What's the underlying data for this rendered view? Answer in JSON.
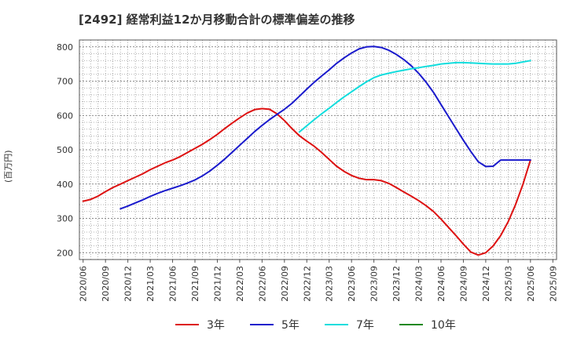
{
  "chart_data": {
    "type": "line",
    "title": "[2492]  経常利益12か月移動合計の標準偏差の推移",
    "ylabel": "(百万円)",
    "xlabel": "",
    "ylim": [
      180,
      820
    ],
    "yticks": [
      200,
      300,
      400,
      500,
      600,
      700,
      800
    ],
    "x_ticks": [
      "2020/06",
      "2020/09",
      "2020/12",
      "2021/03",
      "2021/06",
      "2021/09",
      "2021/12",
      "2022/03",
      "2022/06",
      "2022/09",
      "2022/12",
      "2023/03",
      "2023/06",
      "2023/09",
      "2023/12",
      "2024/03",
      "2024/06",
      "2024/09",
      "2024/12",
      "2025/03",
      "2025/06",
      "2025/09"
    ],
    "grid": true,
    "legend_position": "bottom",
    "series": [
      {
        "name": "3年",
        "color": "#dd1111",
        "x": [
          "2020/06",
          "2020/07",
          "2020/08",
          "2020/09",
          "2020/10",
          "2020/11",
          "2020/12",
          "2021/01",
          "2021/02",
          "2021/03",
          "2021/04",
          "2021/05",
          "2021/06",
          "2021/07",
          "2021/08",
          "2021/09",
          "2021/10",
          "2021/11",
          "2021/12",
          "2022/01",
          "2022/02",
          "2022/03",
          "2022/04",
          "2022/05",
          "2022/06",
          "2022/07",
          "2022/08",
          "2022/09",
          "2022/10",
          "2022/11",
          "2022/12",
          "2023/01",
          "2023/02",
          "2023/03",
          "2023/04",
          "2023/05",
          "2023/06",
          "2023/07",
          "2023/08",
          "2023/09",
          "2023/10",
          "2023/11",
          "2023/12",
          "2024/01",
          "2024/02",
          "2024/03",
          "2024/04",
          "2024/05",
          "2024/06",
          "2024/07",
          "2024/08",
          "2024/09",
          "2024/10",
          "2024/11",
          "2024/12",
          "2025/01",
          "2025/02",
          "2025/03",
          "2025/04",
          "2025/05",
          "2025/06"
        ],
        "values": [
          350,
          355,
          365,
          378,
          390,
          400,
          410,
          420,
          430,
          442,
          452,
          462,
          470,
          480,
          492,
          504,
          516,
          530,
          545,
          562,
          578,
          593,
          607,
          617,
          620,
          618,
          605,
          585,
          562,
          541,
          525,
          510,
          492,
          472,
          452,
          437,
          425,
          417,
          413,
          413,
          410,
          402,
          390,
          377,
          365,
          352,
          337,
          320,
          298,
          274,
          250,
          225,
          202,
          193,
          200,
          220,
          250,
          290,
          340,
          400,
          470
        ]
      },
      {
        "name": "5年",
        "color": "#1a1acc",
        "x": [
          "2020/11",
          "2020/12",
          "2021/01",
          "2021/02",
          "2021/03",
          "2021/04",
          "2021/05",
          "2021/06",
          "2021/07",
          "2021/08",
          "2021/09",
          "2021/10",
          "2021/11",
          "2021/12",
          "2022/01",
          "2022/02",
          "2022/03",
          "2022/04",
          "2022/05",
          "2022/06",
          "2022/07",
          "2022/08",
          "2022/09",
          "2022/10",
          "2022/11",
          "2022/12",
          "2023/01",
          "2023/02",
          "2023/03",
          "2023/04",
          "2023/05",
          "2023/06",
          "2023/07",
          "2023/08",
          "2023/09",
          "2023/10",
          "2023/11",
          "2023/12",
          "2024/01",
          "2024/02",
          "2024/03",
          "2024/04",
          "2024/05",
          "2024/06",
          "2024/07",
          "2024/08",
          "2024/09",
          "2024/10",
          "2024/11",
          "2024/12",
          "2025/01",
          "2025/02",
          "2025/03",
          "2025/04",
          "2025/05",
          "2025/06"
        ],
        "values": [
          328,
          336,
          345,
          354,
          364,
          373,
          381,
          388,
          395,
          403,
          412,
          424,
          438,
          455,
          473,
          493,
          513,
          533,
          553,
          571,
          588,
          603,
          618,
          635,
          656,
          677,
          697,
          715,
          733,
          752,
          768,
          782,
          794,
          800,
          801,
          798,
          790,
          778,
          763,
          745,
          723,
          697,
          667,
          632,
          597,
          562,
          528,
          495,
          465,
          451,
          452,
          470,
          470,
          470,
          470,
          470
        ]
      },
      {
        "name": "7年",
        "color": "#11dddd",
        "x": [
          "2022/11",
          "2022/12",
          "2023/01",
          "2023/02",
          "2023/03",
          "2023/04",
          "2023/05",
          "2023/06",
          "2023/07",
          "2023/08",
          "2023/09",
          "2023/10",
          "2023/11",
          "2023/12",
          "2024/01",
          "2024/02",
          "2024/03",
          "2024/04",
          "2024/05",
          "2024/06",
          "2024/07",
          "2024/08",
          "2024/09",
          "2024/10",
          "2024/11",
          "2024/12",
          "2025/01",
          "2025/02",
          "2025/03",
          "2025/04",
          "2025/05",
          "2025/06"
        ],
        "values": [
          552,
          570,
          588,
          605,
          621,
          638,
          654,
          669,
          684,
          698,
          710,
          718,
          723,
          728,
          732,
          736,
          739,
          743,
          746,
          750,
          752,
          754,
          754,
          753,
          752,
          751,
          750,
          750,
          750,
          752,
          756,
          760
        ]
      },
      {
        "name": "10年",
        "color": "#228822",
        "x": [],
        "values": []
      }
    ]
  }
}
